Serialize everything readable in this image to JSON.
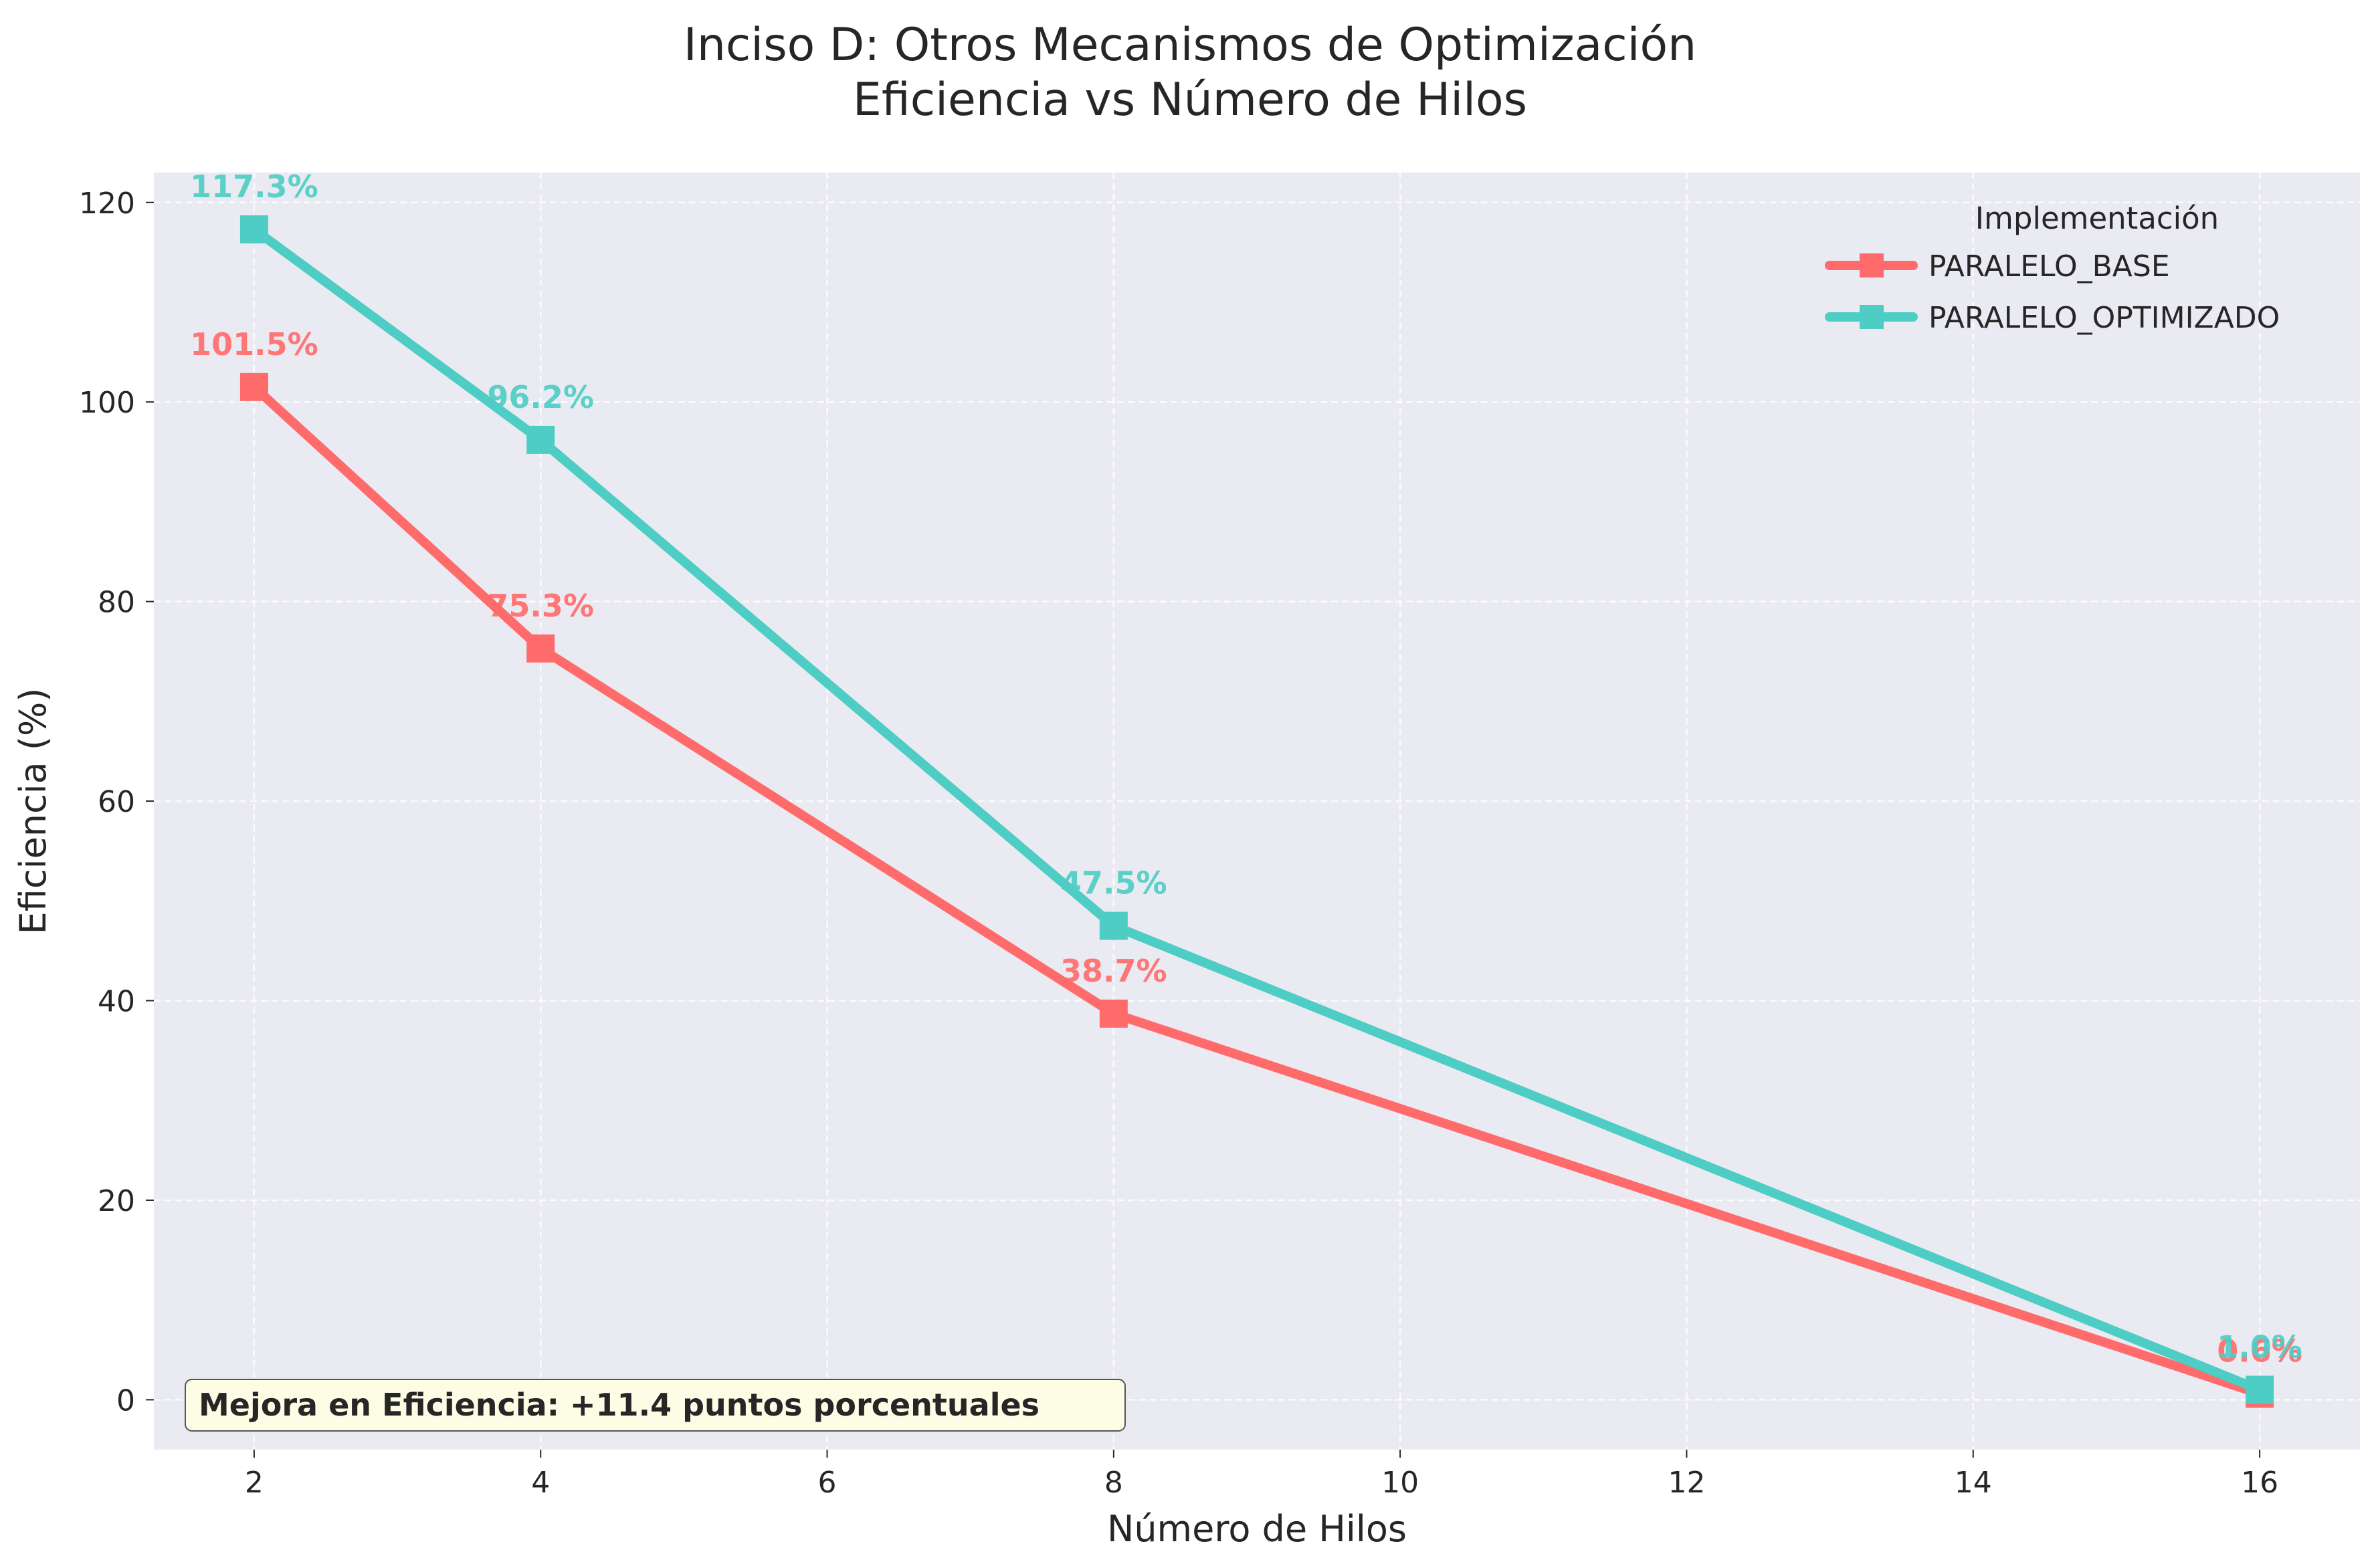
{
  "chart_data": {
    "type": "line",
    "title": "Inciso D: Otros Mecanismos de Optimización",
    "subtitle": "Eficiencia vs Número de Hilos",
    "xlabel": "Número de Hilos",
    "ylabel": "Eficiencia (%)",
    "xlim": [
      1.3,
      16.7
    ],
    "ylim": [
      -5,
      123
    ],
    "xticks": [
      2,
      4,
      6,
      8,
      10,
      12,
      14,
      16
    ],
    "yticks": [
      0,
      20,
      40,
      60,
      80,
      100,
      120
    ],
    "grid": true,
    "legend_title": "Implementación",
    "legend_position": "top-right",
    "x": [
      2,
      4,
      8,
      16
    ],
    "series": [
      {
        "name": "PARALELO_BASE",
        "color": "#ff6b6b",
        "values": [
          101.5,
          75.3,
          38.7,
          0.6
        ],
        "labels": [
          "101.5%",
          "75.3%",
          "38.7%",
          "0.6%"
        ]
      },
      {
        "name": "PARALELO_OPTIMIZADO",
        "color": "#4ecdc4",
        "values": [
          117.3,
          96.2,
          47.5,
          1.0
        ],
        "labels": [
          "117.3%",
          "96.2%",
          "47.5%",
          "1.0%"
        ]
      }
    ],
    "annotation": "Mejora en Eficiencia: +11.4 puntos porcentuales"
  }
}
